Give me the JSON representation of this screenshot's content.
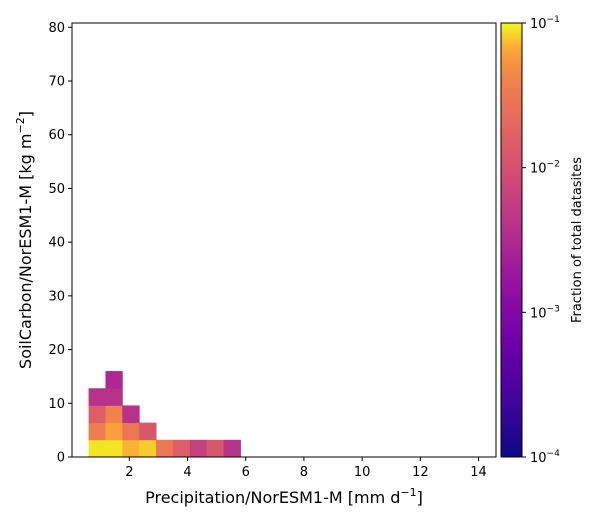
{
  "chart_data": {
    "type": "heatmap",
    "xlabel": "Precipitation/NorESM1-M [mm d",
    "xlabel_unit_exp": "−1",
    "xlabel_close": "]",
    "ylabel": "SoilCarbon/NorESM1-M [kg m",
    "ylabel_unit_exp": "−2",
    "ylabel_close": "]",
    "xlim": [
      0.03,
      14.6
    ],
    "ylim": [
      0,
      80.8
    ],
    "xticks": [
      2,
      4,
      6,
      8,
      10,
      12,
      14
    ],
    "yticks": [
      0,
      10,
      20,
      30,
      40,
      50,
      60,
      70,
      80
    ],
    "bin_width_x": 0.58,
    "bin_height_y": 3.2,
    "colormap": "plasma",
    "colorbar": {
      "label": "Fraction of total datasites",
      "scale": "log",
      "range": [
        0.0001,
        0.1
      ],
      "ticks": [
        {
          "value": 0.1,
          "base": "10",
          "exp": "−1"
        },
        {
          "value": 0.01,
          "base": "10",
          "exp": "−2"
        },
        {
          "value": 0.001,
          "base": "10",
          "exp": "−3"
        },
        {
          "value": 0.0001,
          "base": "10",
          "exp": "−4"
        }
      ]
    },
    "cells": [
      {
        "x": 0.6,
        "y": 0.0,
        "v": 0.09
      },
      {
        "x": 1.18,
        "y": 0.0,
        "v": 0.09
      },
      {
        "x": 1.76,
        "y": 0.0,
        "v": 0.07
      },
      {
        "x": 2.34,
        "y": 0.0,
        "v": 0.08
      },
      {
        "x": 2.92,
        "y": 0.0,
        "v": 0.03
      },
      {
        "x": 3.5,
        "y": 0.0,
        "v": 0.015
      },
      {
        "x": 4.08,
        "y": 0.0,
        "v": 0.006
      },
      {
        "x": 4.66,
        "y": 0.0,
        "v": 0.012
      },
      {
        "x": 5.24,
        "y": 0.0,
        "v": 0.004
      },
      {
        "x": 0.6,
        "y": 3.2,
        "v": 0.035
      },
      {
        "x": 1.18,
        "y": 3.2,
        "v": 0.06
      },
      {
        "x": 1.76,
        "y": 3.2,
        "v": 0.03
      },
      {
        "x": 2.34,
        "y": 3.2,
        "v": 0.012
      },
      {
        "x": 0.6,
        "y": 6.4,
        "v": 0.015
      },
      {
        "x": 1.18,
        "y": 6.4,
        "v": 0.04
      },
      {
        "x": 1.76,
        "y": 6.4,
        "v": 0.004
      },
      {
        "x": 0.6,
        "y": 9.6,
        "v": 0.004
      },
      {
        "x": 1.18,
        "y": 9.6,
        "v": 0.004
      },
      {
        "x": 1.18,
        "y": 12.8,
        "v": 0.003
      }
    ]
  }
}
